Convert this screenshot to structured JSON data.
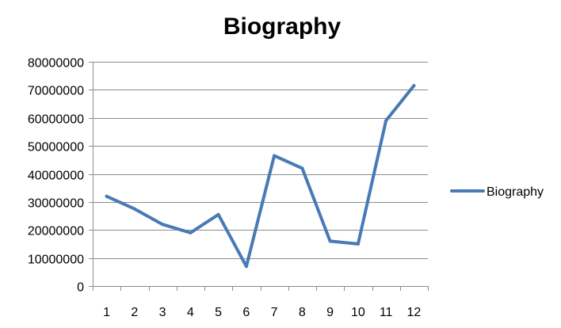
{
  "chart_data": {
    "type": "line",
    "title": "Biography",
    "xlabel": "",
    "ylabel": "",
    "categories": [
      "1",
      "2",
      "3",
      "4",
      "5",
      "6",
      "7",
      "8",
      "9",
      "10",
      "11",
      "12"
    ],
    "series": [
      {
        "name": "Biography",
        "values": [
          32000000,
          27500000,
          22000000,
          19000000,
          25500000,
          7000000,
          46500000,
          42000000,
          16000000,
          15000000,
          59000000,
          71500000
        ]
      }
    ],
    "ylim": [
      0,
      80000000
    ],
    "yticks": [
      0,
      10000000,
      20000000,
      30000000,
      40000000,
      50000000,
      60000000,
      70000000,
      80000000
    ],
    "ytick_labels": [
      "0",
      "10000000",
      "20000000",
      "30000000",
      "40000000",
      "50000000",
      "60000000",
      "70000000",
      "80000000"
    ],
    "grid": "horizontal",
    "legend_position": "right",
    "colors": {
      "series": "#4a7ab4",
      "grid": "#8c8c8c",
      "axis": "#8c8c8c",
      "text": "#000000"
    }
  }
}
